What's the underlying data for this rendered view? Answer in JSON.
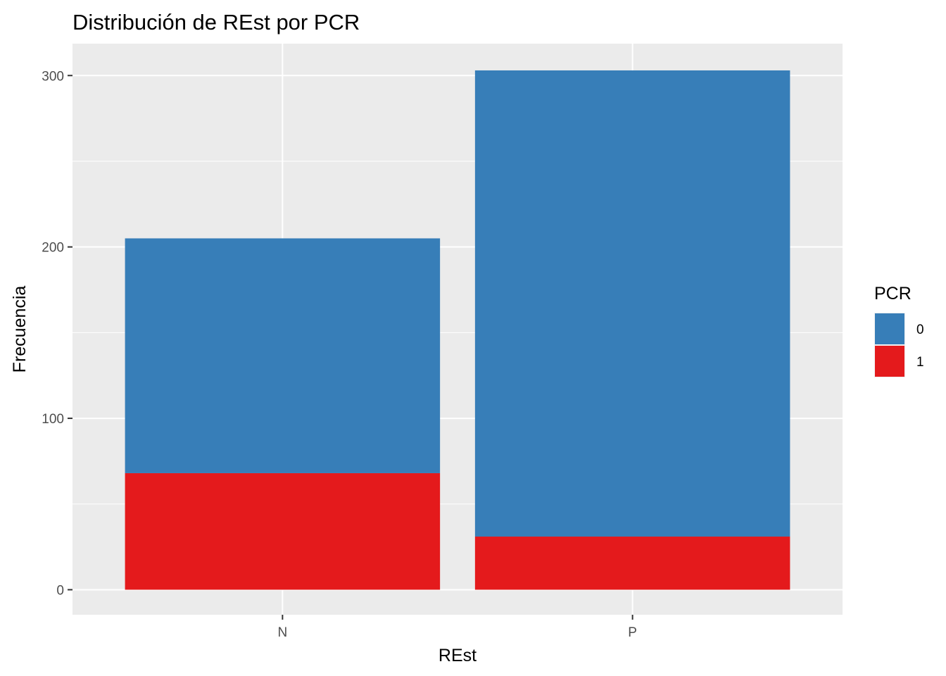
{
  "chart_data": {
    "type": "bar",
    "stacked": true,
    "title": "Distribución de REst por PCR",
    "xlabel": "REst",
    "ylabel": "Frecuencia",
    "categories": [
      "N",
      "P"
    ],
    "series": [
      {
        "name": "0",
        "color": "#377EB8",
        "values": [
          137,
          272
        ]
      },
      {
        "name": "1",
        "color": "#E41A1C",
        "values": [
          68,
          31
        ]
      }
    ],
    "ylim": [
      -14.6,
      318.6
    ],
    "yticks": [
      0,
      100,
      200,
      300
    ],
    "ytick_labels": [
      "0",
      "100",
      "200",
      "300"
    ],
    "grid": true,
    "legend": {
      "title": "PCR",
      "position": "right",
      "labels": [
        "0",
        "1"
      ]
    },
    "panel_background": "#EBEBEB",
    "grid_color": "#FFFFFF"
  }
}
